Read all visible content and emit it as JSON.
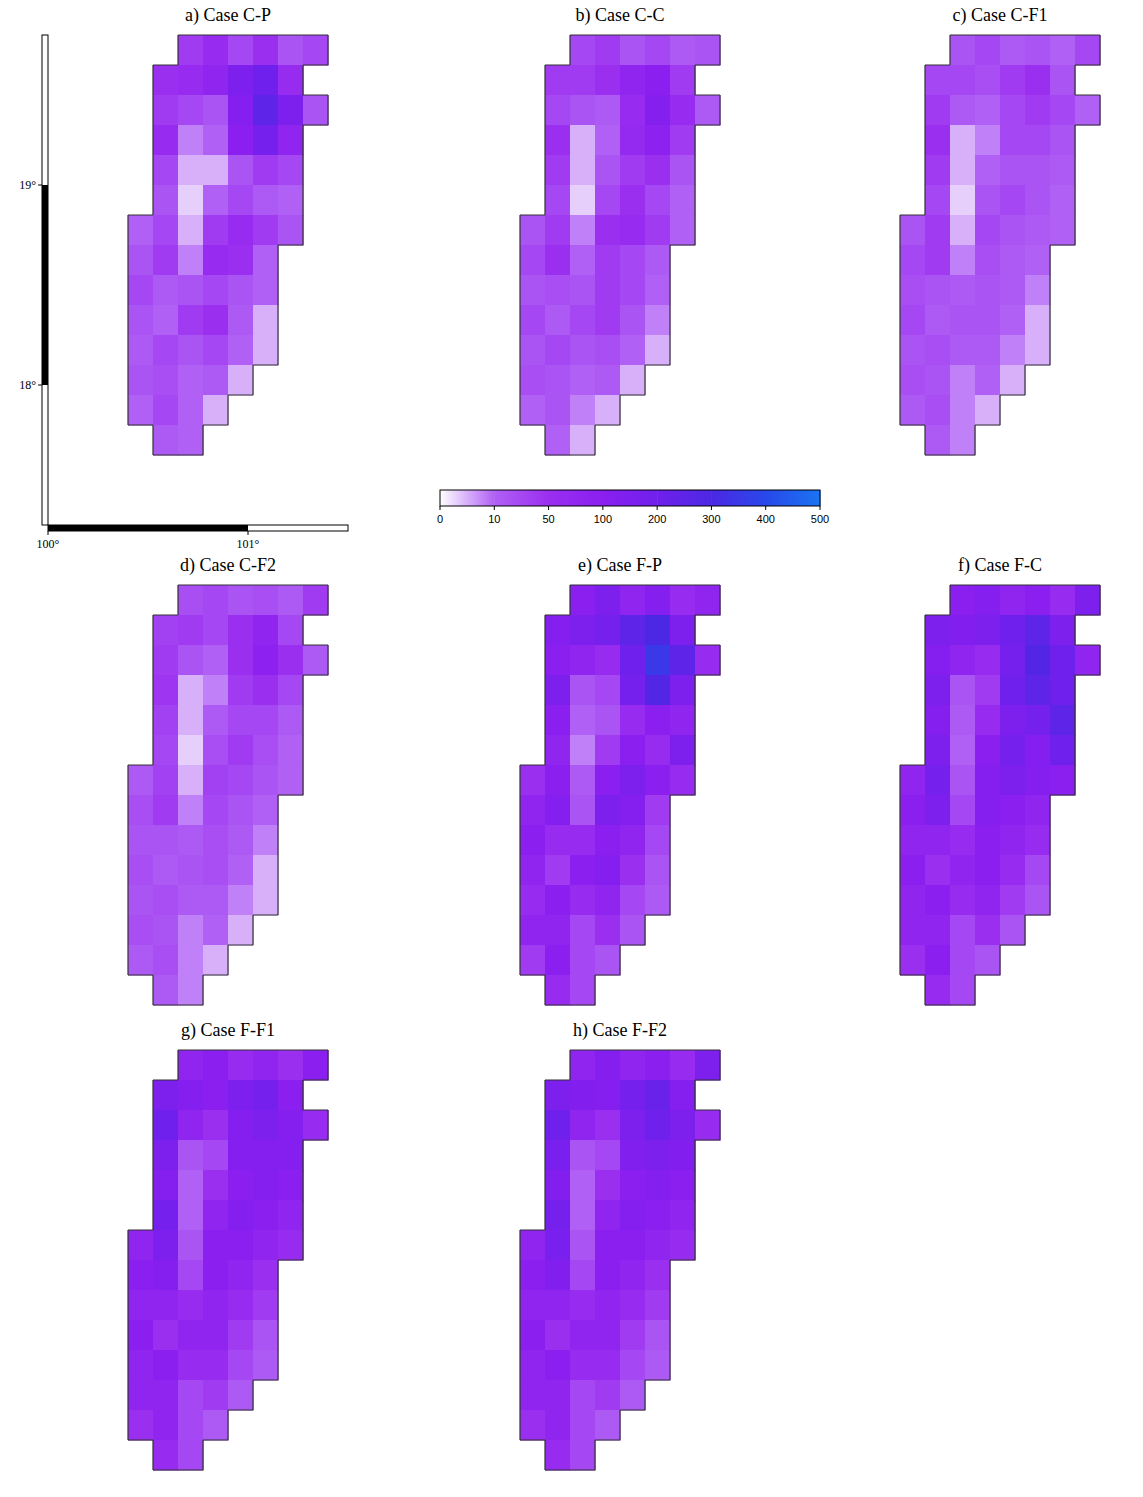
{
  "chart_data": [
    {
      "type": "heatmap",
      "title": "a) Case C-P",
      "xlim": [
        100,
        101.5
      ],
      "ylim": [
        17.3,
        19.75
      ],
      "xticks": [
        {
          "value": 100,
          "label": "100°"
        },
        {
          "value": 101,
          "label": "101°"
        }
      ],
      "yticks": [
        {
          "value": 18,
          "label": "18°"
        },
        {
          "value": 19,
          "label": "19°"
        }
      ],
      "x": [
        100.4,
        100.525,
        100.65,
        100.775,
        100.9,
        101.025,
        101.15,
        101.275,
        101.4
      ],
      "y": [
        19.75,
        19.6,
        19.45,
        19.3,
        19.15,
        19.0,
        18.85,
        18.7,
        18.55,
        18.4,
        18.25,
        18.1,
        17.95,
        17.8,
        17.65
      ],
      "colorbar": {
        "ticks": [
          0,
          10,
          50,
          100,
          200,
          300,
          400,
          500
        ]
      },
      "cells": [
        [
          null,
          null,
          40,
          60,
          30,
          50,
          20,
          30
        ],
        [
          null,
          50,
          60,
          80,
          150,
          200,
          60,
          null
        ],
        [
          null,
          40,
          30,
          20,
          120,
          250,
          150,
          20
        ],
        [
          null,
          60,
          8,
          10,
          100,
          180,
          80,
          null
        ],
        [
          null,
          30,
          5,
          5,
          20,
          40,
          30,
          null
        ],
        [
          null,
          20,
          3,
          10,
          30,
          15,
          10,
          null
        ],
        [
          10,
          30,
          5,
          40,
          60,
          40,
          20,
          null
        ],
        [
          20,
          40,
          8,
          60,
          50,
          10,
          null,
          null
        ],
        [
          30,
          15,
          20,
          30,
          20,
          10,
          null,
          null
        ],
        [
          20,
          10,
          40,
          50,
          15,
          5,
          null,
          null
        ],
        [
          15,
          30,
          20,
          30,
          10,
          5,
          null,
          null
        ],
        [
          20,
          25,
          10,
          15,
          5,
          null,
          null,
          null
        ],
        [
          10,
          30,
          10,
          5,
          null,
          null,
          null,
          null
        ],
        [
          null,
          15,
          10,
          null,
          null,
          null,
          null,
          null
        ]
      ]
    },
    {
      "type": "heatmap",
      "title": "b) Case C-C",
      "tick_labels": false,
      "cells": [
        [
          null,
          null,
          30,
          40,
          20,
          30,
          15,
          20
        ],
        [
          null,
          40,
          40,
          50,
          80,
          100,
          40,
          null
        ],
        [
          null,
          30,
          20,
          15,
          60,
          120,
          60,
          15
        ],
        [
          null,
          50,
          5,
          10,
          70,
          90,
          40,
          null
        ],
        [
          null,
          40,
          5,
          20,
          40,
          50,
          20,
          null
        ],
        [
          null,
          30,
          3,
          30,
          50,
          30,
          10,
          null
        ],
        [
          20,
          40,
          8,
          50,
          60,
          40,
          10,
          null
        ],
        [
          30,
          50,
          10,
          40,
          30,
          15,
          null,
          null
        ],
        [
          20,
          25,
          20,
          40,
          30,
          10,
          null,
          null
        ],
        [
          30,
          15,
          30,
          40,
          20,
          8,
          null,
          null
        ],
        [
          20,
          30,
          20,
          25,
          10,
          5,
          null,
          null
        ],
        [
          25,
          20,
          10,
          15,
          5,
          null,
          null,
          null
        ],
        [
          10,
          20,
          8,
          5,
          null,
          null,
          null,
          null
        ],
        [
          null,
          10,
          5,
          null,
          null,
          null,
          null,
          null
        ]
      ]
    },
    {
      "type": "heatmap",
      "title": "c) Case C-F1",
      "tick_labels": false,
      "cells": [
        [
          null,
          null,
          20,
          30,
          15,
          20,
          10,
          30
        ],
        [
          null,
          30,
          30,
          25,
          40,
          50,
          20,
          null
        ],
        [
          null,
          40,
          15,
          10,
          30,
          40,
          30,
          10
        ],
        [
          null,
          50,
          5,
          8,
          30,
          30,
          20,
          null
        ],
        [
          null,
          40,
          5,
          10,
          20,
          20,
          15,
          null
        ],
        [
          null,
          30,
          3,
          20,
          30,
          20,
          10,
          null
        ],
        [
          20,
          40,
          5,
          30,
          20,
          15,
          10,
          null
        ],
        [
          30,
          40,
          8,
          25,
          15,
          10,
          null,
          null
        ],
        [
          25,
          20,
          15,
          20,
          15,
          8,
          null,
          null
        ],
        [
          30,
          15,
          20,
          20,
          10,
          5,
          null,
          null
        ],
        [
          20,
          25,
          15,
          15,
          8,
          5,
          null,
          null
        ],
        [
          25,
          20,
          8,
          10,
          5,
          null,
          null,
          null
        ],
        [
          15,
          25,
          8,
          5,
          null,
          null,
          null,
          null
        ],
        [
          null,
          15,
          8,
          null,
          null,
          null,
          null,
          null
        ]
      ]
    },
    {
      "type": "heatmap",
      "title": "d) Case C-F2",
      "tick_labels": false,
      "cells": [
        [
          null,
          null,
          25,
          30,
          20,
          25,
          15,
          40
        ],
        [
          null,
          35,
          40,
          30,
          50,
          80,
          30,
          null
        ],
        [
          null,
          40,
          20,
          10,
          50,
          90,
          50,
          15
        ],
        [
          null,
          45,
          5,
          8,
          40,
          50,
          30,
          null
        ],
        [
          null,
          35,
          5,
          15,
          30,
          30,
          15,
          null
        ],
        [
          null,
          30,
          3,
          25,
          40,
          25,
          10,
          null
        ],
        [
          15,
          35,
          5,
          35,
          30,
          20,
          10,
          null
        ],
        [
          25,
          40,
          8,
          30,
          20,
          10,
          null,
          null
        ],
        [
          20,
          20,
          15,
          25,
          15,
          8,
          null,
          null
        ],
        [
          25,
          15,
          20,
          25,
          10,
          5,
          null,
          null
        ],
        [
          20,
          25,
          15,
          15,
          8,
          5,
          null,
          null
        ],
        [
          25,
          20,
          8,
          10,
          5,
          null,
          null,
          null
        ],
        [
          15,
          25,
          8,
          5,
          null,
          null,
          null,
          null
        ],
        [
          null,
          15,
          8,
          null,
          null,
          null,
          null,
          null
        ]
      ]
    },
    {
      "type": "heatmap",
      "title": "e) Case F-P",
      "tick_labels": false,
      "cells": [
        [
          null,
          null,
          100,
          150,
          80,
          120,
          60,
          80
        ],
        [
          null,
          120,
          150,
          180,
          250,
          300,
          150,
          null
        ],
        [
          null,
          100,
          80,
          60,
          200,
          350,
          250,
          60
        ],
        [
          null,
          150,
          20,
          30,
          180,
          280,
          150,
          null
        ],
        [
          null,
          100,
          10,
          20,
          60,
          100,
          80,
          null
        ],
        [
          null,
          80,
          8,
          40,
          100,
          60,
          150,
          null
        ],
        [
          50,
          100,
          15,
          100,
          150,
          100,
          60,
          null
        ],
        [
          80,
          120,
          20,
          150,
          120,
          40,
          null,
          null
        ],
        [
          100,
          60,
          60,
          100,
          80,
          30,
          null,
          null
        ],
        [
          80,
          40,
          100,
          120,
          50,
          20,
          null,
          null
        ],
        [
          60,
          100,
          60,
          80,
          30,
          15,
          null,
          null
        ],
        [
          80,
          80,
          30,
          50,
          20,
          null,
          null,
          null
        ],
        [
          40,
          100,
          30,
          20,
          null,
          null,
          null,
          null
        ],
        [
          null,
          60,
          30,
          null,
          null,
          null,
          null,
          null
        ]
      ]
    },
    {
      "type": "heatmap",
      "title": "f) Case F-C",
      "tick_labels": false,
      "cells": [
        [
          null,
          null,
          100,
          120,
          80,
          100,
          60,
          150
        ],
        [
          null,
          150,
          130,
          150,
          200,
          250,
          150,
          null
        ],
        [
          null,
          120,
          80,
          60,
          180,
          280,
          200,
          80
        ],
        [
          null,
          150,
          20,
          40,
          200,
          250,
          200,
          null
        ],
        [
          null,
          120,
          15,
          60,
          150,
          180,
          250,
          null
        ],
        [
          null,
          150,
          10,
          100,
          180,
          120,
          200,
          null
        ],
        [
          80,
          180,
          20,
          120,
          150,
          120,
          100,
          null
        ],
        [
          100,
          150,
          30,
          120,
          100,
          80,
          null,
          null
        ],
        [
          80,
          80,
          60,
          100,
          80,
          60,
          null,
          null
        ],
        [
          100,
          50,
          80,
          100,
          60,
          30,
          null,
          null
        ],
        [
          80,
          100,
          60,
          80,
          40,
          20,
          null,
          null
        ],
        [
          80,
          80,
          30,
          50,
          20,
          null,
          null,
          null
        ],
        [
          50,
          100,
          30,
          20,
          null,
          null,
          null,
          null
        ],
        [
          null,
          60,
          30,
          null,
          null,
          null,
          null,
          null
        ]
      ]
    },
    {
      "type": "heatmap",
      "title": "g) Case F-F1",
      "tick_labels": false,
      "cells": [
        [
          null,
          null,
          80,
          100,
          60,
          80,
          50,
          100
        ],
        [
          null,
          150,
          120,
          100,
          150,
          180,
          100,
          null
        ],
        [
          null,
          200,
          80,
          50,
          120,
          150,
          120,
          60
        ],
        [
          null,
          150,
          20,
          30,
          120,
          120,
          120,
          null
        ],
        [
          null,
          120,
          10,
          50,
          100,
          120,
          100,
          null
        ],
        [
          null,
          180,
          10,
          80,
          120,
          100,
          80,
          null
        ],
        [
          80,
          150,
          20,
          100,
          100,
          80,
          60,
          null
        ],
        [
          100,
          120,
          30,
          100,
          80,
          50,
          null,
          null
        ],
        [
          80,
          80,
          60,
          80,
          60,
          40,
          null,
          null
        ],
        [
          100,
          50,
          80,
          80,
          40,
          20,
          null,
          null
        ],
        [
          80,
          100,
          60,
          60,
          30,
          15,
          null,
          null
        ],
        [
          80,
          80,
          30,
          40,
          15,
          null,
          null,
          null
        ],
        [
          50,
          80,
          30,
          15,
          null,
          null,
          null,
          null
        ],
        [
          null,
          60,
          30,
          null,
          null,
          null,
          null,
          null
        ]
      ]
    },
    {
      "type": "heatmap",
      "title": "h) Case F-F2",
      "tick_labels": false,
      "cells": [
        [
          null,
          null,
          80,
          120,
          80,
          100,
          60,
          150
        ],
        [
          null,
          150,
          130,
          120,
          180,
          220,
          120,
          null
        ],
        [
          null,
          200,
          80,
          50,
          150,
          200,
          150,
          60
        ],
        [
          null,
          160,
          20,
          30,
          140,
          150,
          130,
          null
        ],
        [
          null,
          130,
          10,
          50,
          100,
          120,
          100,
          null
        ],
        [
          null,
          180,
          10,
          80,
          120,
          100,
          80,
          null
        ],
        [
          80,
          160,
          20,
          100,
          100,
          80,
          60,
          null
        ],
        [
          100,
          130,
          30,
          100,
          80,
          50,
          null,
          null
        ],
        [
          80,
          80,
          60,
          80,
          60,
          40,
          null,
          null
        ],
        [
          100,
          50,
          80,
          80,
          40,
          20,
          null,
          null
        ],
        [
          80,
          100,
          60,
          60,
          30,
          15,
          null,
          null
        ],
        [
          80,
          80,
          30,
          40,
          15,
          null,
          null,
          null
        ],
        [
          50,
          80,
          30,
          15,
          null,
          null,
          null,
          null
        ],
        [
          null,
          60,
          30,
          null,
          null,
          null,
          null,
          null
        ]
      ]
    }
  ]
}
